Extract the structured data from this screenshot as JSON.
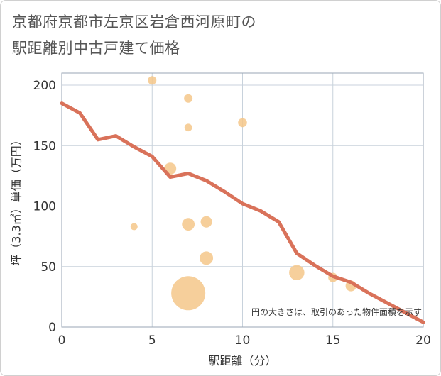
{
  "title_line1": "京都府京都市左京区岩倉西河原町の",
  "title_line2": "駅距離別中古戸建て価格",
  "chart_data": {
    "type": "scatter",
    "title": "京都府京都市左京区岩倉西河原町の駅距離別中古戸建て価格",
    "xlabel": "駅距離（分）",
    "ylabel": "坪（3.3㎡）単価（万円）",
    "xlim": [
      0,
      20
    ],
    "ylim": [
      0,
      210
    ],
    "xticks": [
      0,
      5,
      10,
      15,
      20
    ],
    "yticks": [
      0,
      50,
      100,
      150,
      200
    ],
    "grid": true,
    "note": "円の大きさは、取引のあった物件面積を示す",
    "colors": {
      "bubble": "#f5c78a",
      "line": "#d9725a",
      "grid": "#c8d2dc"
    },
    "points": [
      {
        "x": 5,
        "y": 204,
        "size": 1
      },
      {
        "x": 7,
        "y": 189,
        "size": 1
      },
      {
        "x": 7,
        "y": 165,
        "size": 0.8
      },
      {
        "x": 10,
        "y": 169,
        "size": 1.1
      },
      {
        "x": 6,
        "y": 131,
        "size": 2
      },
      {
        "x": 4,
        "y": 83,
        "size": 0.7
      },
      {
        "x": 7,
        "y": 85,
        "size": 2.2
      },
      {
        "x": 8,
        "y": 87,
        "size": 1.8
      },
      {
        "x": 8,
        "y": 57,
        "size": 2.5
      },
      {
        "x": 13,
        "y": 45,
        "size": 3.2
      },
      {
        "x": 15,
        "y": 41,
        "size": 1.2
      },
      {
        "x": 16,
        "y": 34,
        "size": 1.6
      },
      {
        "x": 7,
        "y": 28,
        "size": 16
      }
    ],
    "trend": {
      "x": [
        0,
        1,
        2,
        3,
        4,
        5,
        6,
        7,
        8,
        9,
        10,
        11,
        12,
        13,
        14,
        15,
        16,
        17,
        18,
        19,
        20
      ],
      "y": [
        185,
        177,
        155,
        158,
        149,
        141,
        124,
        127,
        121,
        112,
        102,
        96,
        87,
        61,
        51,
        42,
        37,
        28,
        20,
        12,
        4
      ]
    }
  }
}
